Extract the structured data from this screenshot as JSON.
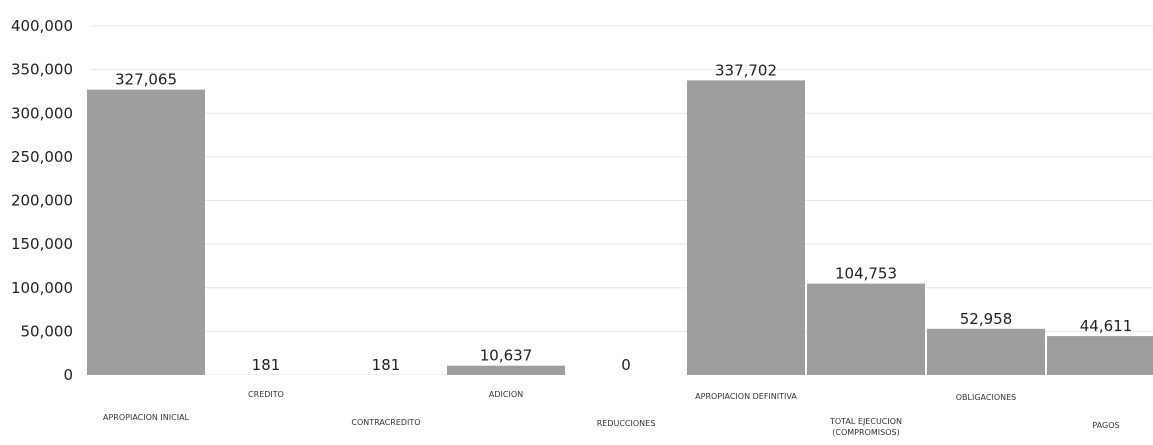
{
  "chart_data": {
    "type": "bar",
    "categories": [
      "APROPIACION INICIAL",
      "CREDITO",
      "CONTRACREDITO",
      "ADICION",
      "REDUCCIONES",
      "APROPIACION DEFINITIVA",
      "TOTAL EJECUCION (COMPROMISOS)",
      "OBLIGACIONES",
      "PAGOS"
    ],
    "values": [
      327065,
      181,
      181,
      10637,
      0,
      337702,
      104753,
      52958,
      44611
    ],
    "data_labels": [
      "327,065",
      "181",
      "181",
      "10,637",
      "0",
      "337,702",
      "104,753",
      "52,958",
      "44,611"
    ],
    "y_ticks": [
      "0",
      "50,000",
      "100,000",
      "150,000",
      "200,000",
      "250,000",
      "300,000",
      "350,000",
      "400,000"
    ],
    "ylim": [
      0,
      400000
    ],
    "grid": true,
    "legend": "none",
    "bar_color": "#9e9e9e",
    "grid_color": "#e6e6e6",
    "title": "",
    "xlabel": "",
    "ylabel": ""
  }
}
